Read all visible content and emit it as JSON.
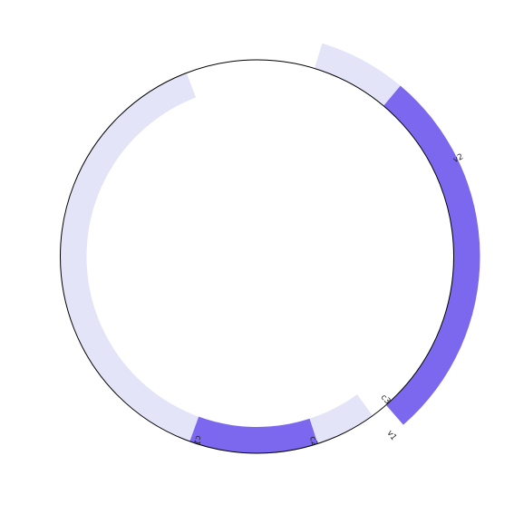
{
  "diagram": {
    "type": "circular-track",
    "colors": {
      "background_band": "#e4e4f8",
      "highlight_band": "#7b68ee",
      "circle_stroke": "#000000",
      "label_text": "#222222"
    },
    "segments": [
      {
        "id": "arc-left",
        "label": "",
        "style": "background",
        "start_deg": 200,
        "end_deg": 339
      },
      {
        "id": "arc-c1-c2",
        "label": "",
        "style": "highlight",
        "start_deg": 162,
        "end_deg": 200
      },
      {
        "id": "arc-c2-c3",
        "label": "",
        "style": "background",
        "start_deg": 144,
        "end_deg": 162
      },
      {
        "id": "arc-v1-v2",
        "label": "",
        "style": "highlight",
        "start_deg": 40,
        "end_deg": 139
      },
      {
        "id": "arc-top",
        "label": "",
        "style": "background",
        "start_deg": 17,
        "end_deg": 40
      }
    ],
    "markers": [
      {
        "id": "c1",
        "label": "c1",
        "angle_deg": 198
      },
      {
        "id": "c2",
        "label": "c2",
        "angle_deg": 163
      },
      {
        "id": "c3",
        "label": "c3",
        "angle_deg": 138
      },
      {
        "id": "v1",
        "label": "v1",
        "angle_deg": 143
      },
      {
        "id": "v2",
        "label": "v2",
        "angle_deg": 64
      }
    ]
  }
}
